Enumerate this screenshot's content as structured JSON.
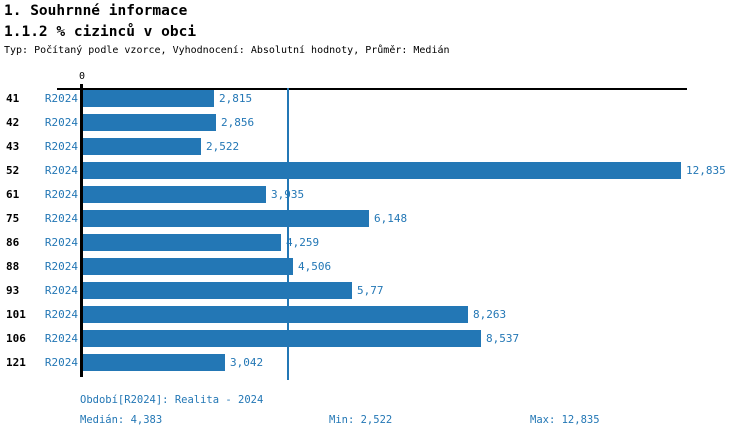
{
  "header": {
    "title": "1. Souhrnné informace",
    "subtitle": "1.1.2 % cizinců v obci",
    "meta": "Typ: Počítaný podle vzorce, Vyhodnocení: Absolutní hodnoty, Průměr: Medián"
  },
  "chart_data": {
    "type": "bar",
    "orientation": "horizontal",
    "title": "1.1.2 % cizinců v obci",
    "categories": [
      "41",
      "42",
      "43",
      "52",
      "61",
      "75",
      "86",
      "88",
      "93",
      "101",
      "106",
      "121"
    ],
    "series": [
      {
        "name": "R2024",
        "values": [
          2.815,
          2.856,
          2.522,
          12.835,
          3.935,
          6.148,
          4.259,
          4.506,
          5.77,
          8.263,
          8.537,
          3.042
        ]
      }
    ],
    "value_labels": [
      "2,815",
      "2,856",
      "2,522",
      "12,835",
      "3,935",
      "6,148",
      "4,259",
      "4,506",
      "5,77",
      "8,263",
      "8,537",
      "3,042"
    ],
    "axis_zero_label": "0",
    "xlim": [
      0,
      12.9
    ],
    "median_value": 4.383,
    "median_line": true,
    "grid": false,
    "legend_position": "none",
    "bar_color": "#2377b5",
    "axis_color": "#000000"
  },
  "footer": {
    "period": "Období[R2024]: Realita - 2024",
    "median": "Medián: 4,383",
    "min": "Min: 2,522",
    "max": "Max: 12,835"
  },
  "colors": {
    "accent_blue": "#2377b5",
    "label_black": "#000000",
    "background": "#ffffff"
  }
}
